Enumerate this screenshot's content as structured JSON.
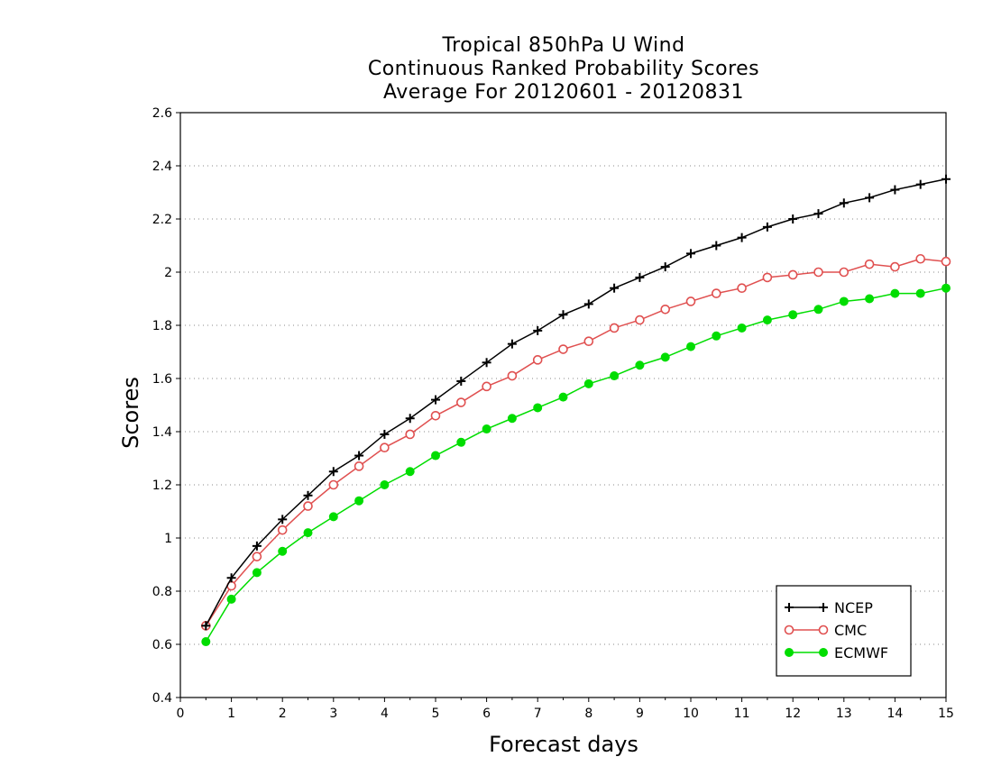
{
  "chart_data": {
    "type": "line",
    "title": [
      "Tropical 850hPa U Wind",
      "Continuous Ranked Probability Scores",
      "Average For 20120601 - 20120831"
    ],
    "xlabel": "Forecast days",
    "ylabel": "Scores",
    "xlim": [
      0,
      15
    ],
    "ylim": [
      0.4,
      2.6
    ],
    "xticks": [
      0,
      1,
      2,
      3,
      4,
      5,
      6,
      7,
      8,
      9,
      10,
      11,
      12,
      13,
      14,
      15
    ],
    "xtick_labels": [
      "0",
      "1",
      "2",
      "3",
      "4",
      "5",
      "6",
      "7",
      "8",
      "9",
      "10",
      "11",
      "12",
      "13",
      "14",
      "15"
    ],
    "yticks": [
      0.4,
      0.6,
      0.8,
      1,
      1.2,
      1.4,
      1.6,
      1.8,
      2,
      2.2,
      2.4,
      2.6
    ],
    "ytick_labels": [
      "0.4",
      "0.6",
      "0.8",
      "1",
      "1.2",
      "1.4",
      "1.6",
      "1.8",
      "2",
      "2.2",
      "2.4",
      "2.6"
    ],
    "grid": "horizontal-dotted",
    "legend_position": "bottom-right",
    "x": [
      0.5,
      1,
      1.5,
      2,
      2.5,
      3,
      3.5,
      4,
      4.5,
      5,
      5.5,
      6,
      6.5,
      7,
      7.5,
      8,
      8.5,
      9,
      9.5,
      10,
      10.5,
      11,
      11.5,
      12,
      12.5,
      13,
      13.5,
      14,
      14.5,
      15
    ],
    "series": [
      {
        "name": "NCEP",
        "color": "#000000",
        "marker": "plus",
        "values": [
          0.67,
          0.85,
          0.97,
          1.07,
          1.16,
          1.25,
          1.31,
          1.39,
          1.45,
          1.52,
          1.59,
          1.66,
          1.73,
          1.78,
          1.84,
          1.88,
          1.94,
          1.98,
          2.02,
          2.07,
          2.1,
          2.13,
          2.17,
          2.2,
          2.22,
          2.26,
          2.28,
          2.31,
          2.33,
          2.35
        ]
      },
      {
        "name": "CMC",
        "color": "#e05050",
        "marker": "open-circle",
        "values": [
          0.67,
          0.82,
          0.93,
          1.03,
          1.12,
          1.2,
          1.27,
          1.34,
          1.39,
          1.46,
          1.51,
          1.57,
          1.61,
          1.67,
          1.71,
          1.74,
          1.79,
          1.82,
          1.86,
          1.89,
          1.92,
          1.94,
          1.98,
          1.99,
          2.0,
          2.0,
          2.03,
          2.02,
          2.05,
          2.04
        ]
      },
      {
        "name": "ECMWF",
        "color": "#00dd00",
        "marker": "filled-circle",
        "values": [
          0.61,
          0.77,
          0.87,
          0.95,
          1.02,
          1.08,
          1.14,
          1.2,
          1.25,
          1.31,
          1.36,
          1.41,
          1.45,
          1.49,
          1.53,
          1.58,
          1.61,
          1.65,
          1.68,
          1.72,
          1.76,
          1.79,
          1.82,
          1.84,
          1.86,
          1.89,
          1.9,
          1.92,
          1.92,
          1.94
        ]
      }
    ]
  }
}
